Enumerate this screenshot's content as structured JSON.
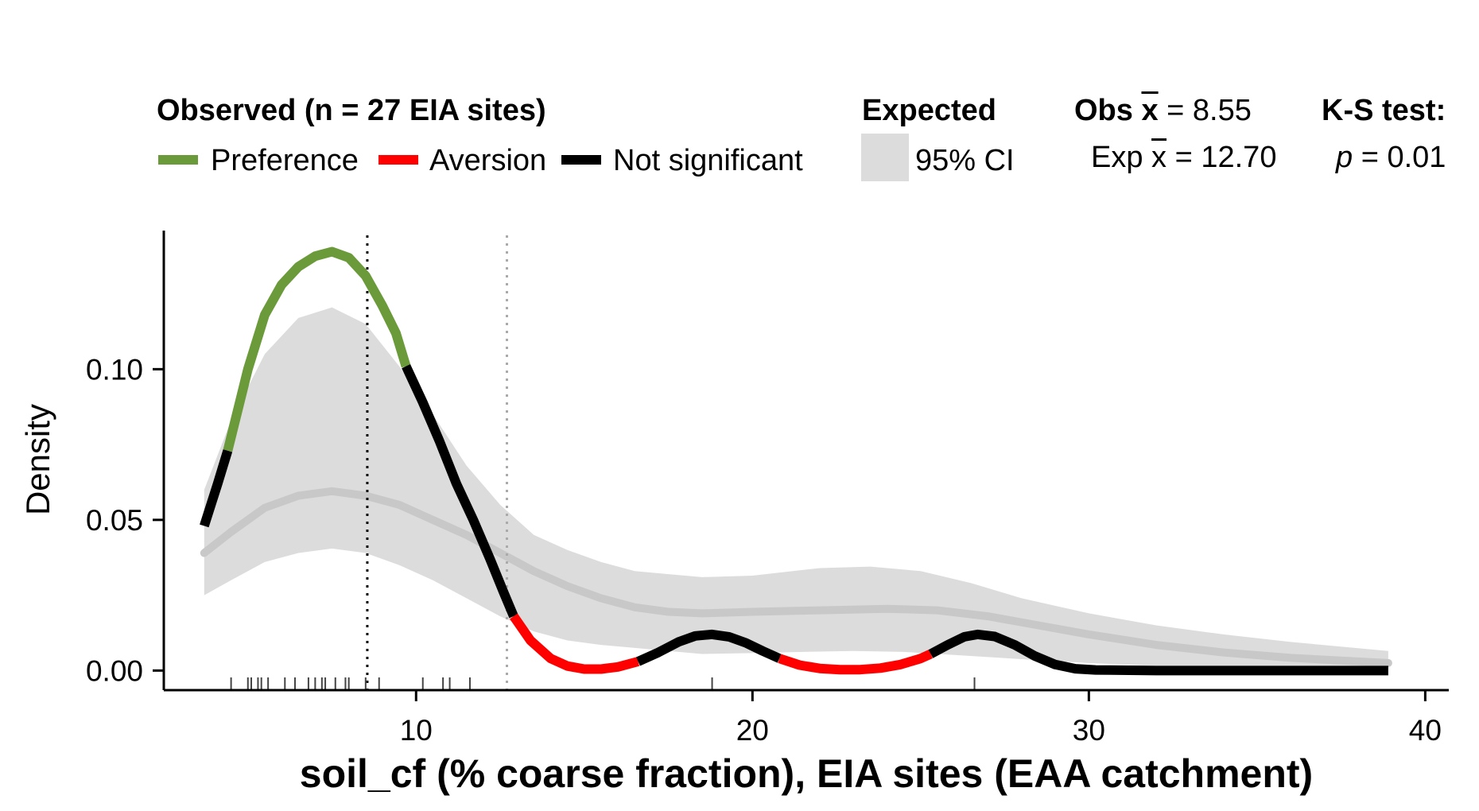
{
  "legend": {
    "observed_title": "Observed (n = 27 EIA sites)",
    "preference": "Preference",
    "aversion": "Aversion",
    "not_significant": "Not significant",
    "expected_title": "Expected",
    "ci": "95% CI",
    "obs_mean_label": "Obs",
    "obs_mean_value": "= 8.55",
    "exp_mean_label": "Exp",
    "exp_mean_value": "= 12.70",
    "mean_symbol": "x",
    "ks_title": "K-S test:",
    "p_symbol": "p",
    "p_value": "= 0.01"
  },
  "colors": {
    "preference": "#6b9a3a",
    "aversion": "#ff0000",
    "not_significant": "#000000",
    "ci_fill": "#dcdcdc",
    "expected_line": "#c8c8c8"
  },
  "chart_data": {
    "type": "line",
    "xlabel": "soil_cf (% coarse fraction), EIA sites (EAA catchment)",
    "ylabel": "Density",
    "xlim": [
      2.5,
      40.7
    ],
    "ylim": [
      -0.0065,
      0.146
    ],
    "x_ticks": [
      10,
      20,
      30,
      40
    ],
    "x_tick_labels": [
      "10",
      "20",
      "30",
      "40"
    ],
    "y_ticks": [
      0.0,
      0.05,
      0.1
    ],
    "y_tick_labels": [
      "0.00",
      "0.05",
      "0.10"
    ],
    "grid": false,
    "legend_position": "top",
    "observed_mean": 8.55,
    "expected_mean": 12.7,
    "observed_segments": [
      {
        "status": "Not significant",
        "points": [
          [
            3.7,
            0.048
          ],
          [
            4.1,
            0.062
          ],
          [
            4.4,
            0.073
          ]
        ]
      },
      {
        "status": "Preference",
        "points": [
          [
            4.4,
            0.073
          ],
          [
            5.0,
            0.1
          ],
          [
            5.5,
            0.118
          ],
          [
            6.0,
            0.128
          ],
          [
            6.5,
            0.134
          ],
          [
            7.0,
            0.1375
          ],
          [
            7.5,
            0.139
          ],
          [
            8.0,
            0.137
          ],
          [
            8.5,
            0.131
          ],
          [
            9.0,
            0.121
          ],
          [
            9.4,
            0.112
          ],
          [
            9.7,
            0.101
          ]
        ]
      },
      {
        "status": "Not significant",
        "points": [
          [
            9.7,
            0.101
          ],
          [
            10.2,
            0.089
          ],
          [
            10.7,
            0.076
          ],
          [
            11.2,
            0.062
          ],
          [
            11.7,
            0.05
          ],
          [
            12.2,
            0.037
          ],
          [
            12.6,
            0.026
          ],
          [
            12.9,
            0.018
          ]
        ]
      },
      {
        "status": "Aversion",
        "points": [
          [
            12.9,
            0.018
          ],
          [
            13.4,
            0.01
          ],
          [
            14.0,
            0.004
          ],
          [
            14.5,
            0.0015
          ],
          [
            15.0,
            0.0005
          ],
          [
            15.5,
            0.0005
          ],
          [
            16.0,
            0.0012
          ],
          [
            16.6,
            0.003
          ]
        ]
      },
      {
        "status": "Not significant",
        "points": [
          [
            16.6,
            0.003
          ],
          [
            17.2,
            0.006
          ],
          [
            17.8,
            0.0095
          ],
          [
            18.3,
            0.0115
          ],
          [
            18.8,
            0.012
          ],
          [
            19.3,
            0.0112
          ],
          [
            19.8,
            0.0092
          ],
          [
            20.3,
            0.0065
          ],
          [
            20.8,
            0.004
          ]
        ]
      },
      {
        "status": "Aversion",
        "points": [
          [
            20.8,
            0.004
          ],
          [
            21.4,
            0.0018
          ],
          [
            22.0,
            0.0007
          ],
          [
            22.6,
            0.0003
          ],
          [
            23.2,
            0.0003
          ],
          [
            23.8,
            0.0008
          ],
          [
            24.4,
            0.002
          ],
          [
            25.0,
            0.004
          ],
          [
            25.3,
            0.0055
          ]
        ]
      },
      {
        "status": "Not significant",
        "points": [
          [
            25.3,
            0.0055
          ],
          [
            25.8,
            0.0085
          ],
          [
            26.3,
            0.0112
          ],
          [
            26.7,
            0.012
          ],
          [
            27.2,
            0.0113
          ],
          [
            27.8,
            0.0085
          ],
          [
            28.4,
            0.0048
          ],
          [
            29.0,
            0.002
          ],
          [
            29.6,
            0.0006
          ],
          [
            30.2,
            0.0002
          ],
          [
            32,
            0.0
          ],
          [
            35,
            0.0
          ],
          [
            38.9,
            0.0
          ]
        ]
      }
    ],
    "expected_mean_curve": [
      [
        3.7,
        0.039
      ],
      [
        4.5,
        0.046
      ],
      [
        5.5,
        0.054
      ],
      [
        6.5,
        0.058
      ],
      [
        7.5,
        0.0595
      ],
      [
        8.5,
        0.058
      ],
      [
        9.5,
        0.055
      ],
      [
        10.5,
        0.05
      ],
      [
        11.5,
        0.045
      ],
      [
        12.5,
        0.039
      ],
      [
        13.5,
        0.033
      ],
      [
        14.5,
        0.028
      ],
      [
        15.5,
        0.024
      ],
      [
        16.5,
        0.021
      ],
      [
        17.5,
        0.0195
      ],
      [
        18.5,
        0.019
      ],
      [
        20.0,
        0.0195
      ],
      [
        22.0,
        0.02
      ],
      [
        24.0,
        0.0205
      ],
      [
        25.5,
        0.02
      ],
      [
        27.0,
        0.018
      ],
      [
        28.5,
        0.015
      ],
      [
        30.0,
        0.012
      ],
      [
        32.0,
        0.0085
      ],
      [
        34.0,
        0.006
      ],
      [
        36.0,
        0.0042
      ],
      [
        38.9,
        0.0025
      ]
    ],
    "expected_ci_upper": [
      [
        3.7,
        0.06
      ],
      [
        4.5,
        0.083
      ],
      [
        5.5,
        0.105
      ],
      [
        6.5,
        0.117
      ],
      [
        7.5,
        0.1205
      ],
      [
        8.5,
        0.115
      ],
      [
        9.5,
        0.101
      ],
      [
        10.5,
        0.085
      ],
      [
        11.5,
        0.068
      ],
      [
        12.5,
        0.055
      ],
      [
        13.5,
        0.045
      ],
      [
        14.5,
        0.04
      ],
      [
        15.5,
        0.036
      ],
      [
        16.5,
        0.033
      ],
      [
        17.5,
        0.032
      ],
      [
        18.5,
        0.031
      ],
      [
        20.0,
        0.0315
      ],
      [
        22.0,
        0.034
      ],
      [
        23.5,
        0.0345
      ],
      [
        25.0,
        0.033
      ],
      [
        26.5,
        0.029
      ],
      [
        28.0,
        0.024
      ],
      [
        30.0,
        0.019
      ],
      [
        32.0,
        0.015
      ],
      [
        34.0,
        0.012
      ],
      [
        36.0,
        0.0095
      ],
      [
        38.9,
        0.0065
      ]
    ],
    "expected_ci_lower": [
      [
        3.7,
        0.025
      ],
      [
        4.5,
        0.03
      ],
      [
        5.5,
        0.036
      ],
      [
        6.5,
        0.039
      ],
      [
        7.5,
        0.0405
      ],
      [
        8.5,
        0.039
      ],
      [
        9.5,
        0.035
      ],
      [
        10.5,
        0.03
      ],
      [
        11.5,
        0.024
      ],
      [
        12.5,
        0.018
      ],
      [
        13.5,
        0.013
      ],
      [
        14.5,
        0.01
      ],
      [
        15.5,
        0.0085
      ],
      [
        16.5,
        0.0075
      ],
      [
        17.5,
        0.0065
      ],
      [
        18.5,
        0.0055
      ],
      [
        20.0,
        0.0058
      ],
      [
        21.5,
        0.0062
      ],
      [
        23.0,
        0.0065
      ],
      [
        24.5,
        0.0062
      ],
      [
        26.0,
        0.0052
      ],
      [
        28.0,
        0.0038
      ],
      [
        30.0,
        0.0025
      ],
      [
        32.0,
        0.0015
      ],
      [
        34.0,
        0.0008
      ],
      [
        36.0,
        0.0004
      ],
      [
        38.9,
        0.0002
      ]
    ],
    "rug_x": [
      4.5,
      5.0,
      5.1,
      5.3,
      5.4,
      5.6,
      6.1,
      6.4,
      6.8,
      7.0,
      7.2,
      7.3,
      7.6,
      7.9,
      8.0,
      8.5,
      8.9,
      10.2,
      10.8,
      11.0,
      11.6,
      18.8,
      26.6
    ]
  }
}
